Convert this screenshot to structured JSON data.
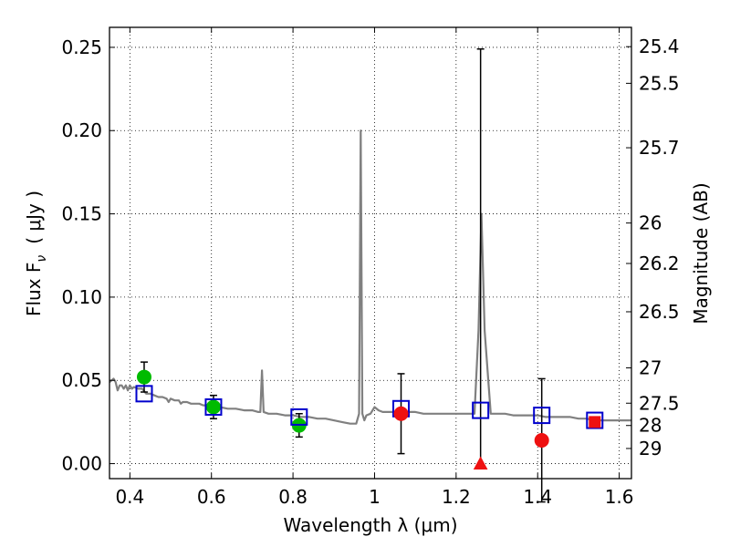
{
  "chart_data": {
    "type": "scatter",
    "xlabel": "Wavelength  λ (μm)",
    "ylabel": "Flux  F",
    "ylabel_subscript": "ν",
    "ylabel_unit": "( μJy )",
    "ylabel_right": "Magnitude (AB)",
    "xlim": [
      0.35,
      1.63
    ],
    "ylim": [
      -0.009,
      0.262
    ],
    "grid": true,
    "grid_style": "dotted",
    "x_ticks": [
      {
        "v": 0.4,
        "label": "0.4"
      },
      {
        "v": 0.6,
        "label": "0.6"
      },
      {
        "v": 0.8,
        "label": "0.8"
      },
      {
        "v": 1.0,
        "label": "1"
      },
      {
        "v": 1.2,
        "label": "1.2"
      },
      {
        "v": 1.4,
        "label": "1.4"
      },
      {
        "v": 1.6,
        "label": "1.6"
      }
    ],
    "y_ticks": [
      {
        "v": 0.0,
        "label": "0.00"
      },
      {
        "v": 0.05,
        "label": "0.05"
      },
      {
        "v": 0.1,
        "label": "0.10"
      },
      {
        "v": 0.15,
        "label": "0.15"
      },
      {
        "v": 0.2,
        "label": "0.20"
      },
      {
        "v": 0.25,
        "label": "0.25"
      }
    ],
    "right_ticks": [
      {
        "flux": 0.2504,
        "label": "25.4"
      },
      {
        "flux": 0.2284,
        "label": "25.5"
      },
      {
        "flux": 0.1897,
        "label": "25.7"
      },
      {
        "flux": 0.1445,
        "label": "26"
      },
      {
        "flux": 0.1202,
        "label": "26.2"
      },
      {
        "flux": 0.0912,
        "label": "26.5"
      },
      {
        "flux": 0.0575,
        "label": "27"
      },
      {
        "flux": 0.0363,
        "label": "27.5"
      },
      {
        "flux": 0.0229,
        "label": "28"
      },
      {
        "flux": 0.0091,
        "label": "29"
      }
    ],
    "colors": {
      "template": "#808080",
      "model": "#0000cc",
      "detection": "#00bb00",
      "low_sn": "#ee1111",
      "errorbar": "#000000"
    },
    "series": [
      {
        "role": "template spectrum",
        "style": "line",
        "points": [
          [
            0.35,
            0.049
          ],
          [
            0.36,
            0.051
          ],
          [
            0.365,
            0.049
          ],
          [
            0.37,
            0.044
          ],
          [
            0.375,
            0.047
          ],
          [
            0.38,
            0.047
          ],
          [
            0.385,
            0.045
          ],
          [
            0.39,
            0.047
          ],
          [
            0.395,
            0.044
          ],
          [
            0.4,
            0.047
          ],
          [
            0.405,
            0.045
          ],
          [
            0.41,
            0.046
          ],
          [
            0.42,
            0.045
          ],
          [
            0.43,
            0.045
          ],
          [
            0.44,
            0.042
          ],
          [
            0.45,
            0.042
          ],
          [
            0.46,
            0.041
          ],
          [
            0.47,
            0.04
          ],
          [
            0.48,
            0.04
          ],
          [
            0.49,
            0.039
          ],
          [
            0.495,
            0.037
          ],
          [
            0.5,
            0.039
          ],
          [
            0.51,
            0.038
          ],
          [
            0.52,
            0.038
          ],
          [
            0.525,
            0.036
          ],
          [
            0.53,
            0.037
          ],
          [
            0.54,
            0.037
          ],
          [
            0.55,
            0.036
          ],
          [
            0.56,
            0.036
          ],
          [
            0.57,
            0.036
          ],
          [
            0.58,
            0.035
          ],
          [
            0.59,
            0.035
          ],
          [
            0.6,
            0.035
          ],
          [
            0.62,
            0.034
          ],
          [
            0.64,
            0.033
          ],
          [
            0.66,
            0.033
          ],
          [
            0.68,
            0.032
          ],
          [
            0.7,
            0.032
          ],
          [
            0.715,
            0.031
          ],
          [
            0.72,
            0.031
          ],
          [
            0.724,
            0.056
          ],
          [
            0.728,
            0.031
          ],
          [
            0.74,
            0.03
          ],
          [
            0.76,
            0.03
          ],
          [
            0.78,
            0.029
          ],
          [
            0.8,
            0.029
          ],
          [
            0.82,
            0.028
          ],
          [
            0.84,
            0.028
          ],
          [
            0.86,
            0.027
          ],
          [
            0.88,
            0.027
          ],
          [
            0.9,
            0.026
          ],
          [
            0.92,
            0.025
          ],
          [
            0.94,
            0.024
          ],
          [
            0.955,
            0.024
          ],
          [
            0.962,
            0.03
          ],
          [
            0.966,
            0.2
          ],
          [
            0.97,
            0.03
          ],
          [
            0.975,
            0.026
          ],
          [
            0.98,
            0.029
          ],
          [
            0.99,
            0.03
          ],
          [
            1.0,
            0.034
          ],
          [
            1.01,
            0.032
          ],
          [
            1.02,
            0.031
          ],
          [
            1.04,
            0.031
          ],
          [
            1.06,
            0.031
          ],
          [
            1.08,
            0.031
          ],
          [
            1.1,
            0.031
          ],
          [
            1.12,
            0.03
          ],
          [
            1.14,
            0.03
          ],
          [
            1.16,
            0.03
          ],
          [
            1.18,
            0.03
          ],
          [
            1.2,
            0.03
          ],
          [
            1.22,
            0.03
          ],
          [
            1.245,
            0.03
          ],
          [
            1.255,
            0.08
          ],
          [
            1.262,
            0.15
          ],
          [
            1.27,
            0.08
          ],
          [
            1.285,
            0.03
          ],
          [
            1.3,
            0.03
          ],
          [
            1.32,
            0.03
          ],
          [
            1.34,
            0.029
          ],
          [
            1.36,
            0.029
          ],
          [
            1.38,
            0.029
          ],
          [
            1.4,
            0.029
          ],
          [
            1.42,
            0.028
          ],
          [
            1.44,
            0.028
          ],
          [
            1.46,
            0.028
          ],
          [
            1.48,
            0.028
          ],
          [
            1.5,
            0.027
          ],
          [
            1.52,
            0.027
          ],
          [
            1.54,
            0.026
          ],
          [
            1.56,
            0.026
          ],
          [
            1.58,
            0.026
          ],
          [
            1.6,
            0.026
          ],
          [
            1.63,
            0.026
          ]
        ]
      },
      {
        "role": "model photometry",
        "marker": "open square",
        "points": [
          [
            0.435,
            0.042
          ],
          [
            0.605,
            0.034
          ],
          [
            0.815,
            0.028
          ],
          [
            1.065,
            0.033
          ],
          [
            1.26,
            0.032
          ],
          [
            1.41,
            0.029
          ],
          [
            1.54,
            0.026
          ]
        ]
      },
      {
        "role": "detections",
        "marker": "filled circle",
        "points": [
          {
            "x": 0.435,
            "y": 0.052,
            "err": 0.009
          },
          {
            "x": 0.605,
            "y": 0.034,
            "err": 0.007
          },
          {
            "x": 0.815,
            "y": 0.023,
            "err": 0.007
          }
        ]
      },
      {
        "role": "low significance",
        "marker": "filled circle",
        "points": [
          {
            "x": 1.065,
            "y": 0.03,
            "err": 0.024
          },
          {
            "x": 1.41,
            "y": 0.014,
            "err": 0.037
          },
          {
            "x": 1.54,
            "y": 0.025,
            "err": 0.0
          }
        ]
      },
      {
        "role": "upper limit",
        "marker": "triangle",
        "points": [
          {
            "x": 1.26,
            "y": 0.0,
            "lower": 0.0,
            "upper": 0.249
          }
        ]
      }
    ]
  }
}
